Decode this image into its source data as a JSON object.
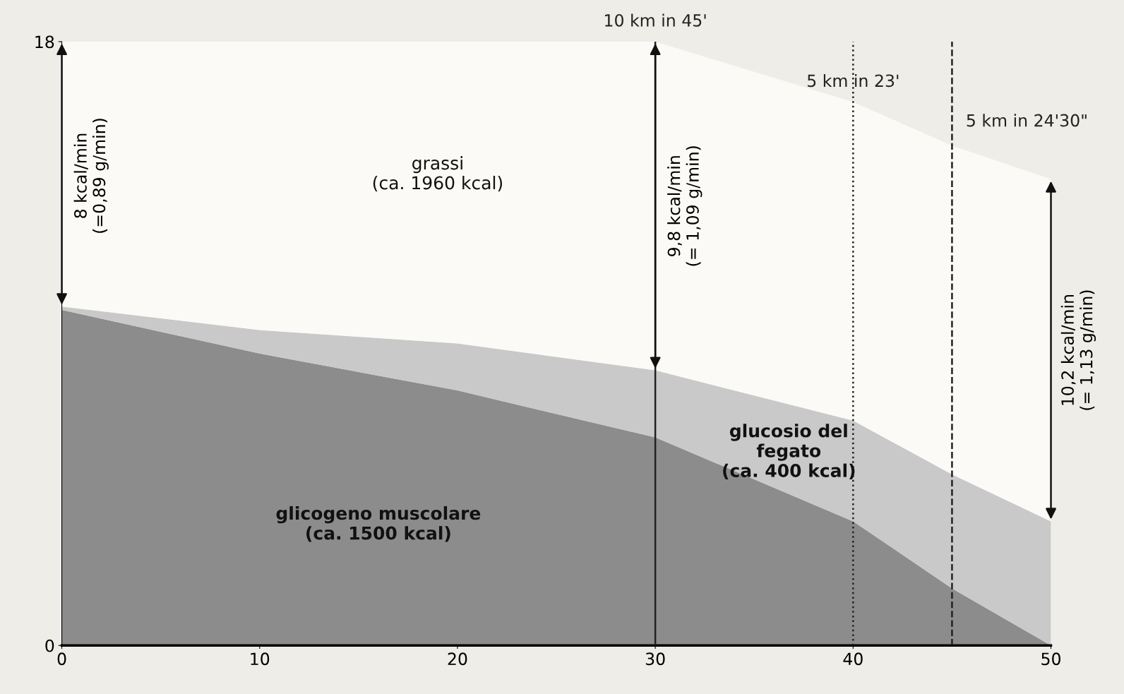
{
  "chart_data": {
    "type": "area",
    "stacked": true,
    "x": [
      0,
      10,
      20,
      30,
      40,
      45,
      50
    ],
    "series": [
      {
        "color": "#8c8c8c",
        "values": [
          10,
          8.7,
          7.6,
          6.2,
          3.7,
          1.7,
          0
        ]
      },
      {
        "color": "#c9c9c9",
        "values": [
          0.1,
          0.7,
          1.4,
          2.0,
          3.0,
          3.4,
          3.7
        ]
      },
      {
        "color": "#fbfaf6",
        "values": [
          7.9,
          8.6,
          9.0,
          9.8,
          9.5,
          9.8,
          10.2
        ]
      }
    ],
    "xlim": [
      0,
      50
    ],
    "ylim": [
      0,
      18
    ],
    "xticks": [
      0,
      10,
      20,
      30,
      40,
      50
    ],
    "yticks": [
      0,
      18
    ],
    "grid": false,
    "ref_lines": [
      {
        "axis": "x",
        "value": 30,
        "label": null,
        "line_style": "solid",
        "color": "#222222"
      },
      {
        "axis": "x",
        "value": 40,
        "label": null,
        "line_style": "dotted",
        "color": "#222222"
      },
      {
        "axis": "x",
        "value": 45,
        "label": null,
        "line_style": "dashed",
        "color": "#222222"
      }
    ],
    "annotations": [
      "grassi\n(ca. 1960 kcal)",
      "glicogeno muscolare\n(ca. 1500 kcal)",
      "glucosio del\nfegato\n(ca. 400 kcal)",
      {
        "text": "8 kcal/min\n(=0,89 g/min)",
        "x": 0,
        "y": 14
      },
      {
        "text": "9,8 kcal/min\n(= 1,09 g/min)",
        "x": 30,
        "y": 13.1
      },
      {
        "text": "10,2 kcal/min\n(= 1,13 g/min)",
        "x": 50,
        "y": 8.8
      },
      {
        "text": "10 km in 45'",
        "x": 30,
        "y": 18
      },
      {
        "text": "5 km in 23'",
        "x": 40,
        "y": 16.2
      },
      {
        "text": "5 km in 24'30\"",
        "x": 45,
        "y": 14.9
      }
    ]
  }
}
